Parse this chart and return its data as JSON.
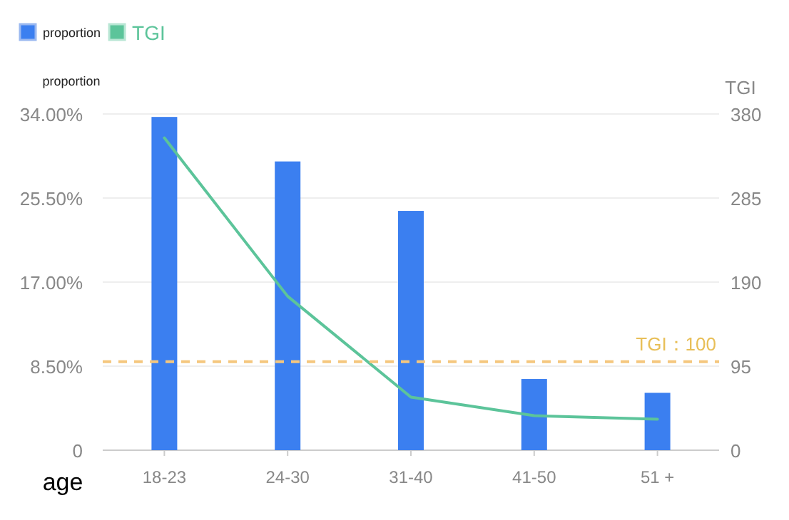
{
  "chart_data": {
    "type": "bar",
    "categories": [
      "18-23",
      "24-30",
      "31-40",
      "41-50",
      "51 +"
    ],
    "xlabel": "age",
    "ylabel": "proportion",
    "y2label": "TGI",
    "series": [
      {
        "name": "proportion",
        "color": "#3b7ff0",
        "type": "bar",
        "values": [
          33.7,
          29.2,
          24.2,
          7.2,
          5.8
        ]
      },
      {
        "name": "TGI",
        "color": "#5cc49a",
        "type": "line",
        "axis": "y2",
        "values": [
          353,
          174,
          60,
          39,
          35
        ]
      }
    ],
    "ylim": [
      0,
      34
    ],
    "yticks": [
      {
        "value": 0,
        "label": "0"
      },
      {
        "value": 8.5,
        "label": "8.50%"
      },
      {
        "value": 17,
        "label": "17.00%"
      },
      {
        "value": 25.5,
        "label": "25.50%"
      },
      {
        "value": 34,
        "label": "34.00%"
      }
    ],
    "y2lim": [
      0,
      380
    ],
    "y2ticks": [
      0,
      95,
      190,
      285,
      380
    ],
    "ref_lines": [
      {
        "axis": "y2",
        "value": 100,
        "label": "TGI：100",
        "color": "#f5c77e",
        "line_style": "dashed"
      }
    ],
    "grid": "y",
    "legend": "top left",
    "marker": "none"
  }
}
